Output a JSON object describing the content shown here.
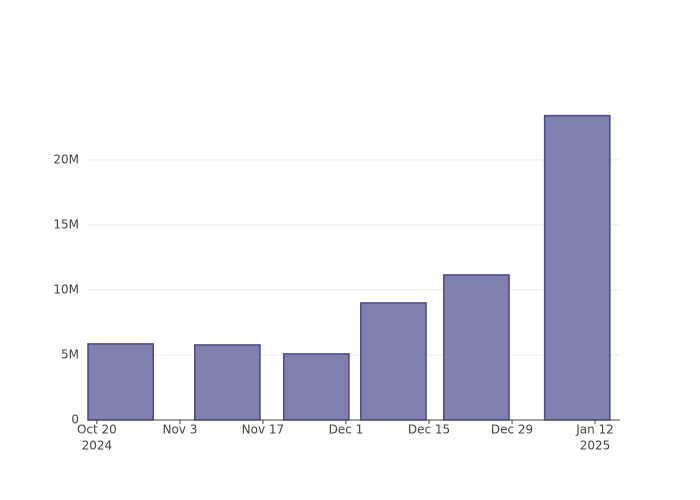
{
  "chart_data": {
    "type": "bar",
    "x": [
      "2024-10-24",
      "2024-11-11",
      "2024-11-26",
      "2024-12-09",
      "2024-12-23",
      "2025-01-09"
    ],
    "values": [
      5850000,
      5770000,
      5080000,
      9000000,
      11150000,
      23400000
    ],
    "color": "#7f7fb0",
    "edge_color": "#4b4b85",
    "ylim": [
      0,
      24600000
    ],
    "yticks": [
      0,
      {
        "value": 5000000,
        "label": "5M"
      },
      {
        "value": 10000000,
        "label": "10M"
      },
      {
        "value": 15000000,
        "label": "15M"
      },
      {
        "value": 20000000,
        "label": "20M"
      }
    ],
    "xlim": [
      "2024-10-18T12:00",
      "2025-01-16T05:00"
    ],
    "xticks": [
      {
        "value": "2024-10-20",
        "label": [
          "Oct 20",
          "2024"
        ]
      },
      {
        "value": "2024-11-03",
        "label": [
          "Nov 3"
        ]
      },
      {
        "value": "2024-11-17",
        "label": [
          "Nov 17"
        ]
      },
      {
        "value": "2024-12-01",
        "label": [
          "Dec 1"
        ]
      },
      {
        "value": "2024-12-15",
        "label": [
          "Dec 15"
        ]
      },
      {
        "value": "2024-12-29",
        "label": [
          "Dec 29"
        ]
      },
      {
        "value": "2025-01-12",
        "label": [
          "Jan 12",
          "2025"
        ]
      }
    ],
    "grid": true
  }
}
